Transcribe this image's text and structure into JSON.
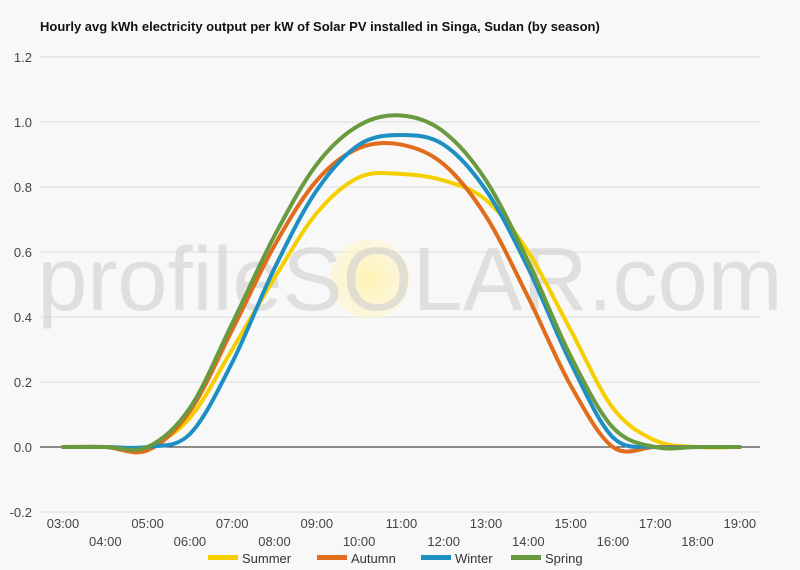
{
  "chart_data": {
    "type": "line",
    "title": "Hourly avg kWh electricity output per kW of Solar PV installed in Singa, Sudan (by season)",
    "xlabel": "",
    "ylabel": "",
    "watermark": "profileSOLAR.com",
    "x": [
      "03:00",
      "04:00",
      "05:00",
      "06:00",
      "07:00",
      "08:00",
      "09:00",
      "10:00",
      "11:00",
      "12:00",
      "13:00",
      "14:00",
      "15:00",
      "16:00",
      "17:00",
      "18:00",
      "19:00"
    ],
    "ylim": [
      -0.2,
      1.2
    ],
    "yticks": [
      1.2,
      1.0,
      0.8,
      0.6,
      0.4,
      0.2,
      0.0,
      -0.2
    ],
    "ytick_labels": [
      "1.2",
      "1.0",
      "0.8",
      "0.6",
      "0.4",
      "0.2",
      "0.0",
      "-0.2"
    ],
    "grid": true,
    "legend_position": "bottom",
    "series": [
      {
        "name": "Summer",
        "color": "#f5d000",
        "values": [
          0.0,
          0.0,
          0.0,
          0.09,
          0.3,
          0.52,
          0.72,
          0.83,
          0.84,
          0.82,
          0.76,
          0.6,
          0.36,
          0.12,
          0.02,
          0.0,
          0.0
        ]
      },
      {
        "name": "Autumn",
        "color": "#e06c1c",
        "values": [
          0.0,
          0.0,
          -0.01,
          0.11,
          0.36,
          0.62,
          0.82,
          0.92,
          0.93,
          0.87,
          0.71,
          0.46,
          0.19,
          0.0,
          0.0,
          0.0,
          0.0
        ]
      },
      {
        "name": "Winter",
        "color": "#1e8fc2",
        "values": [
          0.0,
          0.0,
          0.0,
          0.04,
          0.26,
          0.55,
          0.79,
          0.93,
          0.96,
          0.93,
          0.79,
          0.55,
          0.26,
          0.03,
          0.0,
          0.0,
          0.0
        ]
      },
      {
        "name": "Spring",
        "color": "#6a9a40",
        "values": [
          0.0,
          0.0,
          0.0,
          0.12,
          0.38,
          0.65,
          0.87,
          0.99,
          1.02,
          0.97,
          0.82,
          0.57,
          0.28,
          0.06,
          0.0,
          0.0,
          0.0
        ]
      }
    ]
  }
}
